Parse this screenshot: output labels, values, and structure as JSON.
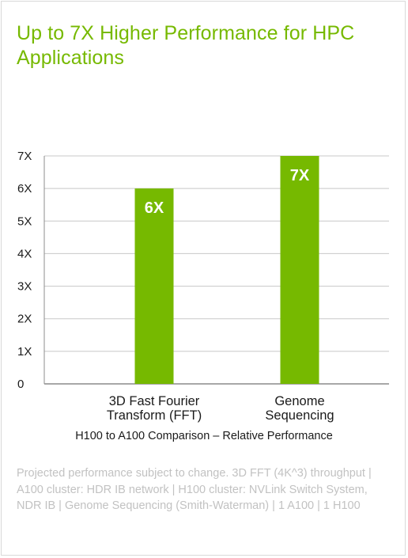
{
  "title": "Up to 7X Higher Performance for HPC Applications",
  "footnote": "Projected performance subject to change. 3D FFT (4K^3) throughput | A100 cluster: HDR IB network | H100 cluster: NVLink Switch System, NDR IB | Genome Sequencing (Smith-Waterman) | 1 A100 | 1 H100",
  "colors": {
    "title": "#76b900",
    "bar": "#76b900",
    "grid": "#c8c8c8",
    "axis": "#8c8c8c",
    "footnote": "#c2c2c2"
  },
  "chart_data": {
    "type": "bar",
    "title": "Up to 7X Higher Performance for HPC Applications",
    "xlabel": "H100 to A100 Comparison – Relative Performance",
    "ylabel": "",
    "categories": [
      [
        "3D Fast Fourier",
        "Transform (FFT)"
      ],
      [
        "Genome",
        "Sequencing"
      ]
    ],
    "values": [
      6,
      7
    ],
    "data_labels": [
      "6X",
      "7X"
    ],
    "ylim": [
      0,
      7
    ],
    "yticks": [
      0,
      1,
      2,
      3,
      4,
      5,
      6,
      7
    ],
    "ytick_labels": [
      "0",
      "1X",
      "2X",
      "3X",
      "4X",
      "5X",
      "6X",
      "7X"
    ],
    "grid": true,
    "legend": "none"
  }
}
